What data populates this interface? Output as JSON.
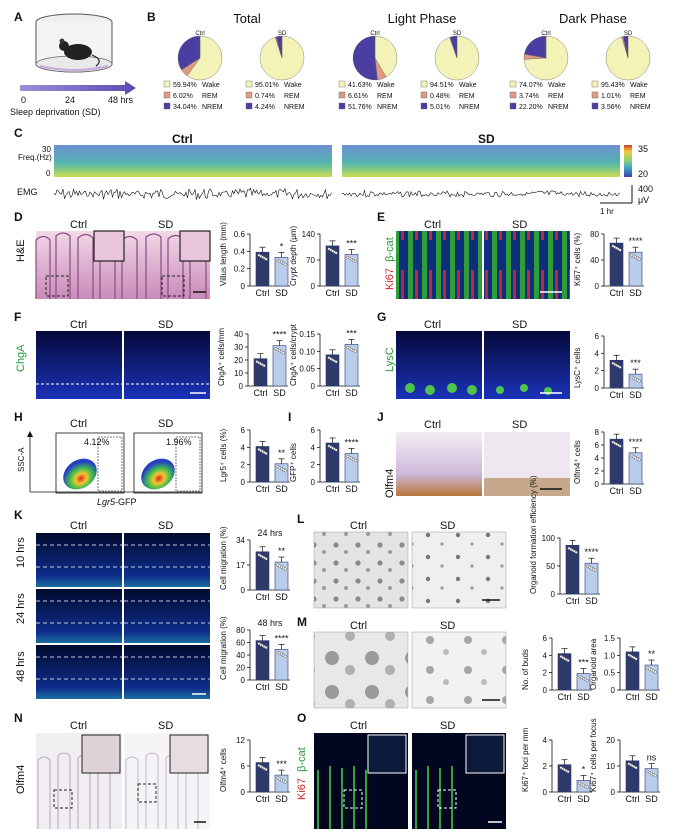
{
  "panelA": {
    "label": "A",
    "ticks": [
      "0",
      "24",
      "48 hrs"
    ],
    "caption": "Sleep deprivation (SD)"
  },
  "panelB": {
    "label": "B",
    "groups": [
      {
        "title": "Total",
        "ctrl": {
          "name": "Ctrl",
          "wake": "59.94%",
          "rem": "6.02%",
          "nrem": "34.04%",
          "values": [
            59.94,
            6.02,
            34.04
          ]
        },
        "sd": {
          "name": "SD",
          "wake": "95.01%",
          "rem": "0.74%",
          "nrem": "4.24%",
          "values": [
            95.01,
            0.74,
            4.24
          ]
        }
      },
      {
        "title": "Light Phase",
        "ctrl": {
          "name": "Ctrl",
          "wake": "41.63%",
          "rem": "6.61%",
          "nrem": "51.76%",
          "values": [
            41.63,
            6.61,
            51.76
          ]
        },
        "sd": {
          "name": "SD",
          "wake": "94.51%",
          "rem": "0.48%",
          "nrem": "5.01%",
          "values": [
            94.51,
            0.48,
            5.01
          ]
        }
      },
      {
        "title": "Dark Phase",
        "ctrl": {
          "name": "Ctrl",
          "wake": "74.07%",
          "rem": "3.74%",
          "nrem": "22.20%",
          "values": [
            74.07,
            3.74,
            22.2
          ]
        },
        "sd": {
          "name": "SD",
          "wake": "95.43%",
          "rem": "1.01%",
          "nrem": "3.56%",
          "values": [
            95.43,
            1.01,
            3.56
          ]
        }
      }
    ],
    "legend": [
      "Wake",
      "REM",
      "NREM"
    ]
  },
  "panelC": {
    "label": "C",
    "ctrl": "Ctrl",
    "sd": "SD",
    "freq": "Freq.(Hz)",
    "y30": "30",
    "y0": "0",
    "emg": "EMG",
    "scale_hi": "35",
    "scale_lo": "20",
    "emg_val": "400",
    "emg_unit": "μV",
    "time": "1 hr"
  },
  "colors": {
    "wake": "#f4f3b7",
    "rem": "#e09a82",
    "nrem": "#4a3fa0",
    "ctrl_bar": "#2e3a6b",
    "sd_bar": "#b9cdea"
  },
  "common": {
    "ctrl": "Ctrl",
    "sd": "SD"
  },
  "bar_labels": {
    "ctrl": "Ctrl",
    "sd": "SD"
  },
  "panelD": {
    "label": "D",
    "stain": "H&E"
  },
  "panelE": {
    "label": "E",
    "stain_a": "Ki67",
    "stain_b": "β-cat"
  },
  "panelF": {
    "label": "F",
    "stain": "ChgA"
  },
  "panelG": {
    "label": "G",
    "stain": "LysC"
  },
  "panelH": {
    "label": "H",
    "xlab_a": "Lgr5",
    "xlab_b": "-GFP",
    "ylab": "SSC-A",
    "gate_ctrl": "4.12%",
    "gate_sd": "1.96%"
  },
  "panelI": {
    "label": "I"
  },
  "panelJ": {
    "label": "J",
    "stain": "Olfm4"
  },
  "panelK": {
    "label": "K",
    "rows": [
      "10 hrs",
      "24 hrs",
      "48 hrs"
    ]
  },
  "panelL": {
    "label": "L"
  },
  "panelM": {
    "label": "M"
  },
  "panelN": {
    "label": "N",
    "stain": "Olfm4"
  },
  "panelO": {
    "label": "O",
    "stain_a": "Ki67",
    "stain_b": "β-cat"
  },
  "chart_data": [
    {
      "id": "D1",
      "type": "bar",
      "categories": [
        "Ctrl",
        "SD"
      ],
      "values": [
        0.39,
        0.33
      ],
      "ylim": [
        0,
        0.6
      ],
      "ticks": [
        "0",
        "0.2",
        "0.4",
        "0.6"
      ],
      "ylabel": "Villus length (mm)",
      "sig": "*"
    },
    {
      "id": "D2",
      "type": "bar",
      "categories": [
        "Ctrl",
        "SD"
      ],
      "values": [
        108,
        85
      ],
      "ylim": [
        0,
        140
      ],
      "ticks": [
        "0",
        "70",
        "140"
      ],
      "ylabel": "Crypt depth (μm)",
      "sig": "***"
    },
    {
      "id": "E1",
      "type": "bar",
      "categories": [
        "Ctrl",
        "SD"
      ],
      "values": [
        66,
        52
      ],
      "ylim": [
        0,
        80
      ],
      "ticks": [
        "0",
        "40",
        "80"
      ],
      "ylabel": "Ki67⁺ cells (%)",
      "sig": "****"
    },
    {
      "id": "F1",
      "type": "bar",
      "categories": [
        "Ctrl",
        "SD"
      ],
      "values": [
        21,
        31
      ],
      "ylim": [
        0,
        40
      ],
      "ticks": [
        "0",
        "10",
        "20",
        "30",
        "40"
      ],
      "ylabel": "ChgA⁺ cells/mm",
      "sig": "****"
    },
    {
      "id": "F2",
      "type": "bar",
      "categories": [
        "Ctrl",
        "SD"
      ],
      "values": [
        0.09,
        0.12
      ],
      "ylim": [
        0,
        0.15
      ],
      "ticks": [
        "0",
        "0.05",
        "0.10",
        "0.15"
      ],
      "ylabel": "ChgA⁺ cells/crypt",
      "sig": "***"
    },
    {
      "id": "G1",
      "type": "bar",
      "categories": [
        "Ctrl",
        "SD"
      ],
      "values": [
        3.2,
        1.6
      ],
      "ylim": [
        0,
        6
      ],
      "ticks": [
        "0",
        "2",
        "4",
        "6"
      ],
      "ylabel": "LysC⁺ cells",
      "sig": "***"
    },
    {
      "id": "H1",
      "type": "bar",
      "categories": [
        "Ctrl",
        "SD"
      ],
      "values": [
        4.1,
        2.1
      ],
      "ylim": [
        0,
        6
      ],
      "ticks": [
        "0",
        "2",
        "4",
        "6"
      ],
      "ylabel": "Lgr5⁺ cells (%)",
      "sig": "**"
    },
    {
      "id": "I1",
      "type": "bar",
      "categories": [
        "Ctrl",
        "SD"
      ],
      "values": [
        4.5,
        3.3
      ],
      "ylim": [
        0,
        6
      ],
      "ticks": [
        "0",
        "2",
        "4",
        "6"
      ],
      "ylabel": "GFP⁺ cells",
      "sig": "****"
    },
    {
      "id": "J1",
      "type": "bar",
      "categories": [
        "Ctrl",
        "SD"
      ],
      "values": [
        6.9,
        4.8
      ],
      "ylim": [
        0,
        8
      ],
      "ticks": [
        "0",
        "2",
        "4",
        "6",
        "8"
      ],
      "ylabel": "Olfm4⁺ cells",
      "sig": "****"
    },
    {
      "id": "K1",
      "type": "bar",
      "title": "24 hrs",
      "categories": [
        "Ctrl",
        "SD"
      ],
      "values": [
        26,
        19
      ],
      "ylim": [
        0,
        34
      ],
      "ticks": [
        "0",
        "17",
        "34"
      ],
      "ylabel": "Cell migration (%)",
      "sig": "**"
    },
    {
      "id": "K2",
      "type": "bar",
      "title": "48 hrs",
      "categories": [
        "Ctrl",
        "SD"
      ],
      "values": [
        63,
        49
      ],
      "ylim": [
        0,
        80
      ],
      "ticks": [
        "0",
        "20",
        "40",
        "60",
        "80"
      ],
      "ylabel": "Cell migration (%)",
      "sig": "****"
    },
    {
      "id": "L1",
      "type": "bar",
      "categories": [
        "Ctrl",
        "SD"
      ],
      "values": [
        87,
        55
      ],
      "ylim": [
        0,
        100
      ],
      "ticks": [
        "0",
        "50",
        "100"
      ],
      "ylabel": "Organoid formation efficiency (%)",
      "sig": "****"
    },
    {
      "id": "M1",
      "type": "bar",
      "categories": [
        "Ctrl",
        "SD"
      ],
      "values": [
        4.2,
        1.9
      ],
      "ylim": [
        0,
        6
      ],
      "ticks": [
        "0",
        "2",
        "4",
        "6"
      ],
      "ylabel": "No. of buds",
      "sig": "***"
    },
    {
      "id": "M2",
      "type": "bar",
      "categories": [
        "Ctrl",
        "SD"
      ],
      "values": [
        1.1,
        0.72
      ],
      "ylim": [
        0,
        1.5
      ],
      "ticks": [
        "0",
        "0.5",
        "1.0",
        "1.5"
      ],
      "ylabel": "Organoid area",
      "sig": "**"
    },
    {
      "id": "N1",
      "type": "bar",
      "categories": [
        "Ctrl",
        "SD"
      ],
      "values": [
        6.8,
        3.9
      ],
      "ylim": [
        0,
        12
      ],
      "ticks": [
        "0",
        "6",
        "12"
      ],
      "ylabel": "Olfm4⁺ cells",
      "sig": "***"
    },
    {
      "id": "O1",
      "type": "bar",
      "categories": [
        "Ctrl",
        "SD"
      ],
      "values": [
        2.1,
        0.9
      ],
      "ylim": [
        0,
        4
      ],
      "ticks": [
        "0",
        "2",
        "4"
      ],
      "ylabel": "Ki67⁺ foci per mm",
      "sig": "*"
    },
    {
      "id": "O2",
      "type": "bar",
      "categories": [
        "Ctrl",
        "SD"
      ],
      "values": [
        12,
        9
      ],
      "ylim": [
        0,
        20
      ],
      "ticks": [
        "0",
        "10",
        "20"
      ],
      "ylabel": "Ki67⁺ cells per focus",
      "sig": "ns"
    }
  ]
}
